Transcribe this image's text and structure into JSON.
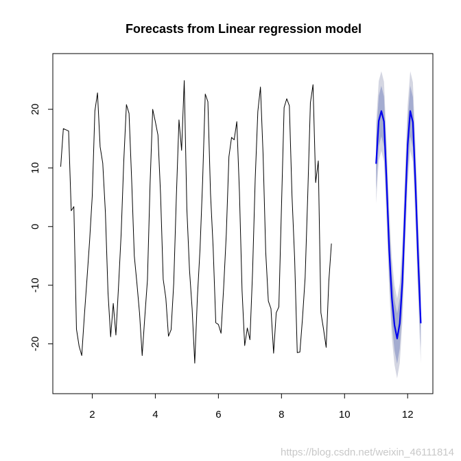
{
  "chart_data": {
    "type": "line",
    "title": "Forecasts from Linear regression model",
    "xlabel": "",
    "ylabel": "",
    "xlim": [
      0.75,
      12.8
    ],
    "ylim": [
      -28.5,
      29.5
    ],
    "x_ticks": [
      2,
      4,
      6,
      8,
      10,
      12
    ],
    "y_ticks": [
      -20,
      -10,
      0,
      10,
      20
    ],
    "grid": false,
    "legend": "none",
    "series": [
      {
        "kind": "observed",
        "color": "#000000",
        "x_start": 1,
        "x_step": 0.0833333,
        "values": [
          10.2,
          16.7,
          16.5,
          16.3,
          2.7,
          3.4,
          -17.5,
          -20.4,
          -22.0,
          -15.2,
          -8.9,
          -2.4,
          5.2,
          19.7,
          22.8,
          13.6,
          10.8,
          2.4,
          -11.3,
          -18.8,
          -13.1,
          -18.5,
          -10.2,
          -1.2,
          11.2,
          20.8,
          19.3,
          7.9,
          -5.0,
          -9.7,
          -14.8,
          -22.0,
          -15.4,
          -9.1,
          7.2,
          20.0,
          17.9,
          15.6,
          5.4,
          -9.0,
          -12.2,
          -18.7,
          -17.6,
          -9.7,
          5.1,
          18.2,
          13.0,
          24.9,
          3.0,
          -7.4,
          -14.0,
          -23.3,
          -12.1,
          -3.9,
          7.8,
          22.6,
          21.3,
          5.6,
          -3.6,
          -16.4,
          -16.7,
          -18.2,
          -10.4,
          -1.3,
          11.9,
          15.2,
          14.8,
          17.9,
          5.9,
          -10.9,
          -20.3,
          -17.3,
          -19.3,
          -7.7,
          8.1,
          19.6,
          23.8,
          12.3,
          -4.3,
          -12.7,
          -14.0,
          -21.6,
          -14.7,
          -13.7,
          3.4,
          20.3,
          21.8,
          20.6,
          5.3,
          -5.4,
          -21.5,
          -21.4,
          -15.6,
          -8.7,
          5.5,
          21.1,
          24.2,
          7.5,
          11.2,
          -14.7,
          -17.5,
          -20.6,
          -9.4,
          -2.9
        ]
      },
      {
        "kind": "forecast",
        "color": "#0000ee",
        "band_inner_color": "#a4acd0",
        "band_outer_color": "#d4d6e2",
        "x_start": 11.0,
        "x_step": 0.0833333,
        "values": [
          10.7,
          18.0,
          19.7,
          17.9,
          7.5,
          -4.1,
          -12.2,
          -16.8,
          -19.1,
          -16.5,
          -9.5,
          2.5,
          13.9,
          19.7,
          17.8,
          7.0,
          -5.6,
          -16.5
        ],
        "inner_halfwidth": 4.3,
        "outer_halfwidth": 6.8
      }
    ]
  },
  "watermark": "https://blog.csdn.net/weixin_46111814"
}
